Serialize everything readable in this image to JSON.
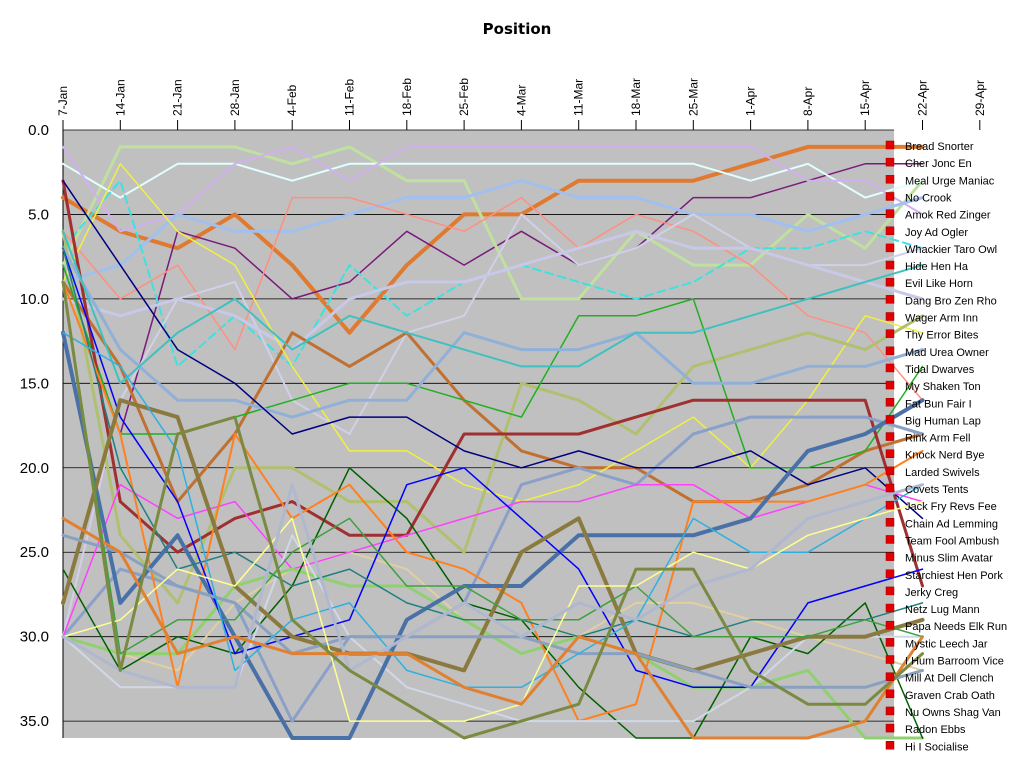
{
  "chart_data": {
    "type": "line",
    "title": "Position",
    "xlabel": "",
    "ylabel": "",
    "x_tick_labels": [
      "7-Jan",
      "14-Jan",
      "21-Jan",
      "28-Jan",
      "4-Feb",
      "11-Feb",
      "18-Feb",
      "25-Feb",
      "4-Mar",
      "11-Mar",
      "18-Mar",
      "25-Mar",
      "1-Apr",
      "8-Apr",
      "15-Apr",
      "22-Apr",
      "29-Apr"
    ],
    "y_tick_labels": [
      "0.0",
      "5.0",
      "10.0",
      "15.0",
      "20.0",
      "25.0",
      "30.0",
      "35.0"
    ],
    "ylim": [
      0,
      36
    ],
    "y_inverted": true,
    "grid": true,
    "legend_position": "right",
    "plot_background": "#c0c0c0",
    "x": [
      "7-Jan",
      "14-Jan",
      "21-Jan",
      "28-Jan",
      "4-Feb",
      "11-Feb",
      "18-Feb",
      "25-Feb",
      "4-Mar",
      "11-Mar",
      "18-Mar",
      "25-Mar",
      "1-Apr",
      "8-Apr",
      "15-Apr",
      "22-Apr"
    ],
    "series": [
      {
        "name": "Bread Snorter",
        "color": "#e07a30",
        "width": 4,
        "values": [
          4,
          6,
          7,
          5,
          8,
          12,
          8,
          5,
          5,
          3,
          3,
          3,
          2,
          1,
          1,
          1
        ]
      },
      {
        "name": "Cher Jonc En",
        "color": "#7a1a7a",
        "width": 1.5,
        "values": [
          8,
          18,
          6,
          7,
          10,
          9,
          6,
          8,
          6,
          8,
          7,
          4,
          4,
          3,
          2,
          2
        ]
      },
      {
        "name": "Meal Urge Maniac",
        "color": "#c0e0a0",
        "width": 3,
        "values": [
          8,
          1,
          1,
          1,
          2,
          1,
          3,
          3,
          10,
          10,
          6,
          8,
          8,
          5,
          7,
          3
        ]
      },
      {
        "name": "No Crook",
        "color": "#e0ffff",
        "width": 2,
        "values": [
          2,
          4,
          2,
          2,
          3,
          2,
          2,
          2,
          2,
          2,
          2,
          2,
          3,
          2,
          4,
          3
        ]
      },
      {
        "name": "Amok Red Zinger",
        "color": "#d0b0f0",
        "width": 2,
        "values": [
          1,
          6,
          5,
          2,
          1,
          3,
          1,
          1,
          1,
          1,
          1,
          1,
          1,
          3,
          3,
          5
        ]
      },
      {
        "name": "Joy Ad Ogler",
        "color": "#a0c0f0",
        "width": 3,
        "values": [
          9,
          8,
          5,
          6,
          6,
          5,
          4,
          4,
          3,
          4,
          4,
          5,
          5,
          6,
          5,
          4
        ]
      },
      {
        "name": "Whackier Taro Owl",
        "color": "#40e0e0",
        "width": 2,
        "dash": true,
        "values": [
          7,
          3,
          14,
          11,
          14,
          8,
          11,
          9,
          8,
          9,
          10,
          9,
          7,
          7,
          6,
          7
        ]
      },
      {
        "name": "Hide Hen Ha",
        "color": "#ff9080",
        "width": 1.5,
        "values": [
          6,
          10,
          8,
          13,
          4,
          4,
          5,
          6,
          4,
          7,
          5,
          6,
          8,
          11,
          12,
          16
        ]
      },
      {
        "name": "Evil Like Horn",
        "color": "#d0d0e8",
        "width": 2,
        "values": [
          30,
          16,
          10,
          9,
          16,
          18,
          12,
          11,
          5,
          8,
          7,
          5,
          7,
          8,
          8,
          7
        ]
      },
      {
        "name": "Dang Bro Zen Rho",
        "color": "#c8c8e8",
        "width": 3,
        "values": [
          10,
          11,
          10,
          11,
          13,
          10,
          9,
          9,
          8,
          7,
          6,
          7,
          7,
          8,
          9,
          10
        ]
      },
      {
        "name": "Wager Arm Inn",
        "color": "#c07030",
        "width": 3,
        "values": [
          9,
          14,
          22,
          18,
          12,
          14,
          12,
          16,
          19,
          20,
          20,
          22,
          22,
          21,
          19,
          18
        ]
      },
      {
        "name": "Thy Error Bites",
        "color": "#f0f040",
        "width": 1.5,
        "values": [
          9,
          2,
          6,
          8,
          14,
          19,
          19,
          21,
          22,
          21,
          19,
          17,
          20,
          16,
          11,
          12
        ]
      },
      {
        "name": "Mad Urea Owner",
        "color": "#b0c070",
        "width": 3,
        "values": [
          6,
          24,
          28,
          20,
          20,
          22,
          22,
          25,
          15,
          16,
          18,
          14,
          13,
          12,
          13,
          11
        ]
      },
      {
        "name": "Tidal Dwarves",
        "color": "#20b020",
        "width": 1.5,
        "values": [
          8,
          18,
          18,
          17,
          16,
          15,
          15,
          16,
          17,
          11,
          11,
          10,
          20,
          20,
          19,
          14
        ]
      },
      {
        "name": "My Shaken Ton",
        "color": "#e0d0a0",
        "width": 2,
        "values": [
          30,
          31,
          32,
          28,
          26,
          25,
          26,
          29,
          29,
          30,
          28,
          28,
          29,
          30,
          31,
          32
        ]
      },
      {
        "name": "Fat Bun Fair I",
        "color": "#a03030",
        "width": 3,
        "values": [
          3,
          22,
          25,
          23,
          22,
          24,
          24,
          18,
          18,
          18,
          17,
          16,
          16,
          16,
          16,
          27
        ]
      },
      {
        "name": "Big Human Lap",
        "color": "#90b0d8",
        "width": 3,
        "values": [
          7,
          13,
          16,
          16,
          17,
          16,
          16,
          12,
          13,
          13,
          12,
          15,
          15,
          14,
          14,
          13
        ]
      },
      {
        "name": "Rink Arm Fell",
        "color": "#8aa0c8",
        "width": 3,
        "values": [
          30,
          26,
          27,
          28,
          35,
          30,
          30,
          28,
          21,
          20,
          21,
          18,
          17,
          17,
          17,
          18
        ]
      },
      {
        "name": "Knock Nerd Bye",
        "color": "#000080",
        "width": 1.5,
        "values": [
          3,
          8,
          13,
          15,
          18,
          17,
          17,
          19,
          20,
          19,
          20,
          20,
          19,
          21,
          20,
          23
        ]
      },
      {
        "name": "Larded Swivels",
        "color": "#40c0c0",
        "width": 2,
        "values": [
          6,
          15,
          12,
          10,
          13,
          11,
          12,
          13,
          14,
          14,
          12,
          12,
          11,
          10,
          9,
          8
        ]
      },
      {
        "name": "Covets Tents",
        "color": "#ff40ff",
        "width": 1.5,
        "values": [
          30,
          21,
          23,
          22,
          26,
          25,
          24,
          23,
          22,
          22,
          21,
          21,
          23,
          22,
          21,
          22
        ]
      },
      {
        "name": "Jack Fry Revs Fee",
        "color": "#90d070",
        "width": 3,
        "values": [
          30,
          31,
          31,
          27,
          26,
          27,
          27,
          29,
          31,
          30,
          31,
          33,
          33,
          32,
          36,
          36
        ]
      },
      {
        "name": "Chain Ad Lemming",
        "color": "#006000",
        "width": 1.5,
        "values": [
          26,
          32,
          30,
          31,
          27,
          20,
          23,
          28,
          29,
          33,
          36,
          36,
          30,
          31,
          28,
          36
        ]
      },
      {
        "name": "Team Fool Ambush",
        "color": "#ff8020",
        "width": 2,
        "values": [
          9,
          18,
          33,
          18,
          23,
          21,
          25,
          26,
          28,
          35,
          34,
          22,
          22,
          22,
          21,
          19
        ]
      },
      {
        "name": "Minus Slim Avatar",
        "color": "#d0d8e8",
        "width": 2,
        "values": [
          30,
          33,
          33,
          33,
          24,
          30,
          33,
          34,
          35,
          35,
          35,
          35,
          33,
          30,
          30,
          30
        ]
      },
      {
        "name": "Starchiest Hen Pork",
        "color": "#4a70a8",
        "width": 4,
        "values": [
          12,
          28,
          24,
          30,
          36,
          36,
          29,
          27,
          27,
          24,
          24,
          24,
          23,
          19,
          18,
          16
        ]
      },
      {
        "name": "Jerky Creg",
        "color": "#0000ff",
        "width": 1.5,
        "values": [
          7,
          17,
          22,
          31,
          30,
          29,
          21,
          20,
          23,
          26,
          32,
          33,
          33,
          28,
          27,
          26
        ]
      },
      {
        "name": "Netz Lug Mann",
        "color": "#208080",
        "width": 1.5,
        "values": [
          7,
          20,
          26,
          25,
          27,
          26,
          28,
          29,
          29,
          30,
          29,
          30,
          29,
          29,
          29,
          28
        ]
      },
      {
        "name": "Papa Needs Elk Run",
        "color": "#8a7a40",
        "width": 4,
        "values": [
          28,
          16,
          17,
          27,
          30,
          31,
          31,
          32,
          25,
          23,
          31,
          32,
          31,
          30,
          30,
          29
        ]
      },
      {
        "name": "Mystic Leech Jar",
        "color": "#8aa0c0",
        "width": 3,
        "values": [
          24,
          25,
          27,
          28,
          31,
          30,
          30,
          30,
          30,
          31,
          31,
          32,
          33,
          33,
          33,
          32
        ]
      },
      {
        "name": "I Hum Barroom Vice",
        "color": "#40a040",
        "width": 1.5,
        "values": [
          9,
          31,
          29,
          29,
          25,
          23,
          27,
          27,
          29,
          29,
          27,
          30,
          30,
          30,
          29,
          30
        ]
      },
      {
        "name": "Mill At Dell Clench",
        "color": "#30b0e0",
        "width": 1.5,
        "values": [
          12,
          14,
          19,
          32,
          29,
          28,
          32,
          33,
          33,
          31,
          29,
          23,
          25,
          25,
          23,
          21
        ]
      },
      {
        "name": "Graven Crab Oath",
        "color": "#ffff90",
        "width": 1.5,
        "values": [
          30,
          29,
          26,
          27,
          23,
          35,
          35,
          35,
          34,
          27,
          27,
          25,
          26,
          24,
          23,
          22
        ]
      },
      {
        "name": "Nu Owns Shag Van",
        "color": "#b0b8d0",
        "width": 3,
        "values": [
          30,
          32,
          33,
          33,
          21,
          32,
          30,
          28,
          30,
          28,
          29,
          27,
          26,
          23,
          22,
          21
        ]
      },
      {
        "name": "Radon Ebbs",
        "color": "#e08030",
        "width": 3,
        "values": [
          23,
          25,
          31,
          30,
          31,
          31,
          31,
          33,
          34,
          30,
          31,
          36,
          36,
          36,
          35,
          30
        ]
      },
      {
        "name": "Hi I Socialise",
        "color": "#7a8a40",
        "width": 3,
        "values": [
          9,
          32,
          18,
          17,
          29,
          32,
          34,
          36,
          35,
          34,
          26,
          26,
          32,
          34,
          34,
          31
        ]
      }
    ]
  }
}
